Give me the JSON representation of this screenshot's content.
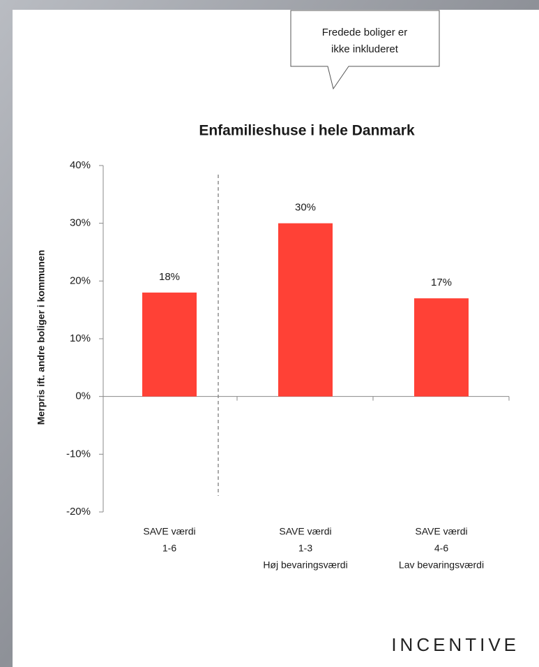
{
  "chart_data": {
    "type": "bar",
    "title": "Enfamilieshuse i hele Danmark",
    "annotation": [
      "Fredede boliger er",
      "ikke inkluderet"
    ],
    "y_label": "Merpris ift. andre boliger i kommunen",
    "categories": [
      [
        "SAVE værdi",
        "1-6"
      ],
      [
        "SAVE værdi",
        "1-3",
        "Høj bevaringsværdi"
      ],
      [
        "SAVE værdi",
        "4-6",
        "Lav bevaringsværdi"
      ]
    ],
    "values": [
      18,
      30,
      17
    ],
    "value_labels": [
      "18%",
      "30%",
      "17%"
    ],
    "color": "#ff4136",
    "ylim": [
      -20,
      40
    ],
    "yticks": [
      {
        "value": -20,
        "label": "-20%"
      },
      {
        "value": -10,
        "label": "-10%"
      },
      {
        "value": 0,
        "label": "0%"
      },
      {
        "value": 10,
        "label": "10%"
      },
      {
        "value": 20,
        "label": "20%"
      },
      {
        "value": 30,
        "label": "30%"
      },
      {
        "value": 40,
        "label": "40%"
      }
    ],
    "grid": false,
    "logo": "INCENTIVE"
  }
}
